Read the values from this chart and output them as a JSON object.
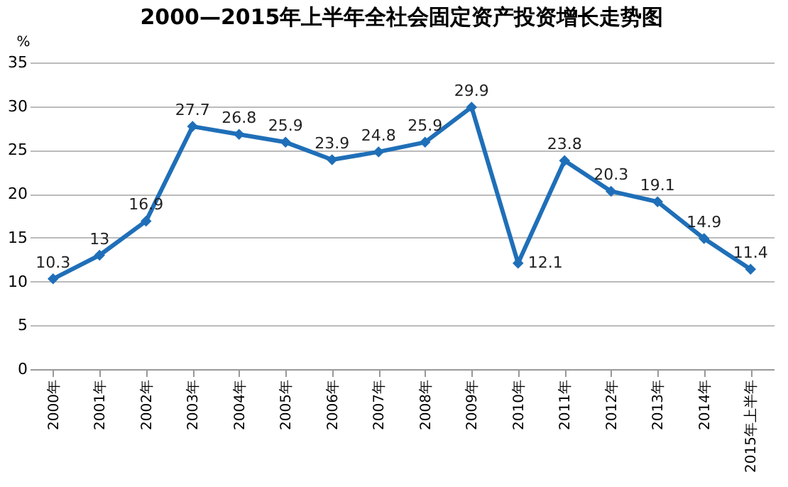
{
  "chart_data": {
    "type": "line",
    "title": "2000—2015年上半年全社会固定资产投资增长走势图",
    "ylabel": "%",
    "categories": [
      "2000年",
      "2001年",
      "2002年",
      "2003年",
      "2004年",
      "2005年",
      "2006年",
      "2007年",
      "2008年",
      "2009年",
      "2010年",
      "2011年",
      "2012年",
      "2013年",
      "2014年",
      "2015年上半年"
    ],
    "series": [
      {
        "color": "#1f6fb8",
        "values": [
          10.3,
          13,
          16.9,
          27.7,
          26.8,
          25.9,
          23.9,
          24.8,
          25.9,
          29.9,
          12.1,
          23.8,
          20.3,
          19.1,
          14.9,
          11.4
        ]
      }
    ],
    "ylim": [
      0,
      35
    ],
    "yticks": [
      0,
      5,
      10,
      15,
      20,
      25,
      30,
      35
    ],
    "grid": "y",
    "marker": "diamond",
    "line_style": "solid",
    "data_labels": true,
    "legend": false
  }
}
